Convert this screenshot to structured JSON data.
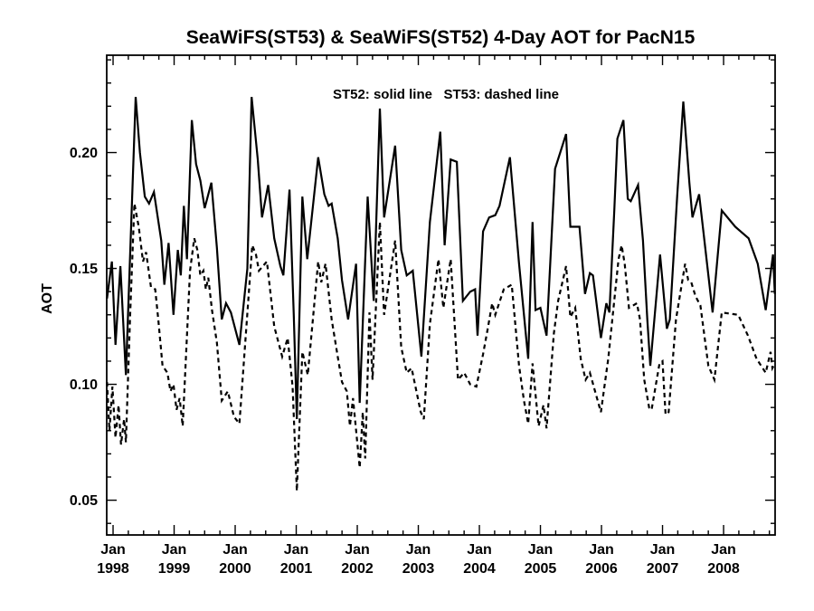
{
  "page": {
    "background_color": "#ffffff",
    "foreground_color": "#000000"
  },
  "chart_data": {
    "type": "line",
    "title": "SeaWiFS(ST53) & SeaWiFS(ST52) 4-Day AOT for PacN15",
    "annotation": "ST52: solid line   ST53: dashed line",
    "xlabel": "",
    "ylabel": "AOT",
    "grid": false,
    "frame": true,
    "legend_position": "top-center-inside",
    "line_color": "#000000",
    "x_axis": {
      "unit": "decimal_year",
      "range": [
        1997.896,
        2008.844
      ],
      "major_ticks": [
        1998,
        1999,
        2000,
        2001,
        2002,
        2003,
        2004,
        2005,
        2006,
        2007,
        2008
      ],
      "tick_months": [
        "Jan",
        "Jan",
        "Jan",
        "Jan",
        "Jan",
        "Jan",
        "Jan",
        "Jan",
        "Jan",
        "Jan",
        "Jan"
      ],
      "tick_years": [
        "1998",
        "1999",
        "2000",
        "2001",
        "2002",
        "2003",
        "2004",
        "2005",
        "2006",
        "2007",
        "2008"
      ],
      "minor_tick_step": 0.25
    },
    "y_axis": {
      "range": [
        0.035,
        0.242
      ],
      "major_ticks": [
        0.05,
        0.1,
        0.15,
        0.2
      ],
      "major_tick_labels": [
        "0.05",
        "0.10",
        "0.15",
        "0.20"
      ],
      "minor_tick_step": 0.01
    },
    "series": [
      {
        "name": "ST52",
        "style": "solid",
        "points": [
          [
            1997.9,
            0.137
          ],
          [
            1997.98,
            0.153
          ],
          [
            1998.04,
            0.117
          ],
          [
            1998.12,
            0.151
          ],
          [
            1998.21,
            0.104
          ],
          [
            1998.37,
            0.224
          ],
          [
            1998.44,
            0.2
          ],
          [
            1998.52,
            0.181
          ],
          [
            1998.59,
            0.178
          ],
          [
            1998.67,
            0.183
          ],
          [
            1998.79,
            0.162
          ],
          [
            1998.84,
            0.143
          ],
          [
            1998.91,
            0.161
          ],
          [
            1998.99,
            0.13
          ],
          [
            1999.06,
            0.158
          ],
          [
            1999.11,
            0.147
          ],
          [
            1999.16,
            0.177
          ],
          [
            1999.21,
            0.154
          ],
          [
            1999.29,
            0.214
          ],
          [
            1999.36,
            0.195
          ],
          [
            1999.43,
            0.188
          ],
          [
            1999.5,
            0.176
          ],
          [
            1999.61,
            0.187
          ],
          [
            1999.7,
            0.159
          ],
          [
            1999.78,
            0.128
          ],
          [
            1999.85,
            0.135
          ],
          [
            1999.93,
            0.131
          ],
          [
            2000.07,
            0.117
          ],
          [
            2000.2,
            0.15
          ],
          [
            2000.27,
            0.224
          ],
          [
            2000.37,
            0.197
          ],
          [
            2000.44,
            0.172
          ],
          [
            2000.54,
            0.186
          ],
          [
            2000.64,
            0.163
          ],
          [
            2000.74,
            0.151
          ],
          [
            2000.79,
            0.147
          ],
          [
            2000.89,
            0.184
          ],
          [
            2000.96,
            0.13
          ],
          [
            2001.01,
            0.085
          ],
          [
            2001.1,
            0.181
          ],
          [
            2001.18,
            0.154
          ],
          [
            2001.36,
            0.198
          ],
          [
            2001.46,
            0.182
          ],
          [
            2001.53,
            0.177
          ],
          [
            2001.58,
            0.178
          ],
          [
            2001.68,
            0.163
          ],
          [
            2001.75,
            0.145
          ],
          [
            2001.85,
            0.128
          ],
          [
            2001.98,
            0.152
          ],
          [
            2002.04,
            0.092
          ],
          [
            2002.17,
            0.181
          ],
          [
            2002.27,
            0.136
          ],
          [
            2002.37,
            0.219
          ],
          [
            2002.44,
            0.172
          ],
          [
            2002.62,
            0.203
          ],
          [
            2002.72,
            0.158
          ],
          [
            2002.81,
            0.147
          ],
          [
            2002.91,
            0.149
          ],
          [
            2003.05,
            0.112
          ],
          [
            2003.19,
            0.17
          ],
          [
            2003.36,
            0.209
          ],
          [
            2003.43,
            0.16
          ],
          [
            2003.53,
            0.197
          ],
          [
            2003.63,
            0.196
          ],
          [
            2003.73,
            0.136
          ],
          [
            2003.85,
            0.14
          ],
          [
            2003.93,
            0.141
          ],
          [
            2003.97,
            0.121
          ],
          [
            2004.06,
            0.166
          ],
          [
            2004.16,
            0.172
          ],
          [
            2004.26,
            0.173
          ],
          [
            2004.33,
            0.177
          ],
          [
            2004.5,
            0.198
          ],
          [
            2004.65,
            0.152
          ],
          [
            2004.8,
            0.111
          ],
          [
            2004.87,
            0.17
          ],
          [
            2004.92,
            0.132
          ],
          [
            2005.0,
            0.133
          ],
          [
            2005.1,
            0.121
          ],
          [
            2005.24,
            0.193
          ],
          [
            2005.42,
            0.208
          ],
          [
            2005.49,
            0.168
          ],
          [
            2005.64,
            0.168
          ],
          [
            2005.73,
            0.139
          ],
          [
            2005.81,
            0.148
          ],
          [
            2005.86,
            0.147
          ],
          [
            2005.99,
            0.12
          ],
          [
            2006.08,
            0.135
          ],
          [
            2006.13,
            0.131
          ],
          [
            2006.21,
            0.175
          ],
          [
            2006.26,
            0.206
          ],
          [
            2006.36,
            0.214
          ],
          [
            2006.43,
            0.18
          ],
          [
            2006.48,
            0.179
          ],
          [
            2006.6,
            0.186
          ],
          [
            2006.68,
            0.162
          ],
          [
            2006.75,
            0.128
          ],
          [
            2006.8,
            0.108
          ],
          [
            2006.96,
            0.156
          ],
          [
            2007.07,
            0.124
          ],
          [
            2007.12,
            0.128
          ],
          [
            2007.24,
            0.181
          ],
          [
            2007.34,
            0.222
          ],
          [
            2007.44,
            0.187
          ],
          [
            2007.49,
            0.172
          ],
          [
            2007.6,
            0.182
          ],
          [
            2007.82,
            0.131
          ],
          [
            2007.97,
            0.175
          ],
          [
            2008.19,
            0.168
          ],
          [
            2008.41,
            0.163
          ],
          [
            2008.56,
            0.152
          ],
          [
            2008.69,
            0.132
          ],
          [
            2008.81,
            0.156
          ],
          [
            2008.84,
            0.139
          ]
        ]
      },
      {
        "name": "ST53",
        "style": "dashed",
        "points": [
          [
            1997.9,
            0.101
          ],
          [
            1997.94,
            0.08
          ],
          [
            1997.99,
            0.099
          ],
          [
            1998.04,
            0.077
          ],
          [
            1998.09,
            0.091
          ],
          [
            1998.13,
            0.074
          ],
          [
            1998.18,
            0.085
          ],
          [
            1998.21,
            0.075
          ],
          [
            1998.28,
            0.13
          ],
          [
            1998.35,
            0.178
          ],
          [
            1998.42,
            0.168
          ],
          [
            1998.49,
            0.153
          ],
          [
            1998.54,
            0.157
          ],
          [
            1998.62,
            0.142
          ],
          [
            1998.69,
            0.141
          ],
          [
            1998.74,
            0.128
          ],
          [
            1998.81,
            0.108
          ],
          [
            1998.89,
            0.105
          ],
          [
            1998.94,
            0.097
          ],
          [
            1998.99,
            0.1
          ],
          [
            1999.04,
            0.089
          ],
          [
            1999.09,
            0.094
          ],
          [
            1999.14,
            0.082
          ],
          [
            1999.26,
            0.149
          ],
          [
            1999.33,
            0.163
          ],
          [
            1999.38,
            0.158
          ],
          [
            1999.43,
            0.147
          ],
          [
            1999.48,
            0.149
          ],
          [
            1999.52,
            0.141
          ],
          [
            1999.56,
            0.146
          ],
          [
            1999.62,
            0.132
          ],
          [
            1999.7,
            0.118
          ],
          [
            1999.78,
            0.093
          ],
          [
            1999.88,
            0.097
          ],
          [
            1999.98,
            0.086
          ],
          [
            2000.07,
            0.083
          ],
          [
            2000.28,
            0.16
          ],
          [
            2000.34,
            0.156
          ],
          [
            2000.39,
            0.149
          ],
          [
            2000.52,
            0.153
          ],
          [
            2000.64,
            0.125
          ],
          [
            2000.77,
            0.112
          ],
          [
            2000.86,
            0.12
          ],
          [
            2000.94,
            0.099
          ],
          [
            2001.01,
            0.054
          ],
          [
            2001.1,
            0.114
          ],
          [
            2001.19,
            0.104
          ],
          [
            2001.36,
            0.153
          ],
          [
            2001.41,
            0.144
          ],
          [
            2001.48,
            0.152
          ],
          [
            2001.58,
            0.128
          ],
          [
            2001.68,
            0.112
          ],
          [
            2001.75,
            0.101
          ],
          [
            2001.83,
            0.097
          ],
          [
            2001.88,
            0.082
          ],
          [
            2001.93,
            0.094
          ],
          [
            2002.04,
            0.064
          ],
          [
            2002.09,
            0.088
          ],
          [
            2002.13,
            0.068
          ],
          [
            2002.2,
            0.131
          ],
          [
            2002.25,
            0.102
          ],
          [
            2002.37,
            0.17
          ],
          [
            2002.44,
            0.13
          ],
          [
            2002.62,
            0.162
          ],
          [
            2002.72,
            0.116
          ],
          [
            2002.81,
            0.105
          ],
          [
            2002.89,
            0.107
          ],
          [
            2003.04,
            0.088
          ],
          [
            2003.09,
            0.085
          ],
          [
            2003.19,
            0.126
          ],
          [
            2003.33,
            0.154
          ],
          [
            2003.41,
            0.133
          ],
          [
            2003.53,
            0.154
          ],
          [
            2003.65,
            0.102
          ],
          [
            2003.75,
            0.105
          ],
          [
            2003.85,
            0.1
          ],
          [
            2003.95,
            0.099
          ],
          [
            2004.06,
            0.113
          ],
          [
            2004.13,
            0.123
          ],
          [
            2004.21,
            0.135
          ],
          [
            2004.26,
            0.13
          ],
          [
            2004.4,
            0.141
          ],
          [
            2004.53,
            0.143
          ],
          [
            2004.65,
            0.108
          ],
          [
            2004.73,
            0.093
          ],
          [
            2004.8,
            0.083
          ],
          [
            2004.87,
            0.109
          ],
          [
            2004.97,
            0.082
          ],
          [
            2005.05,
            0.091
          ],
          [
            2005.1,
            0.081
          ],
          [
            2005.22,
            0.122
          ],
          [
            2005.29,
            0.136
          ],
          [
            2005.42,
            0.151
          ],
          [
            2005.49,
            0.129
          ],
          [
            2005.57,
            0.133
          ],
          [
            2005.66,
            0.111
          ],
          [
            2005.74,
            0.102
          ],
          [
            2005.81,
            0.105
          ],
          [
            2005.99,
            0.088
          ],
          [
            2006.11,
            0.111
          ],
          [
            2006.28,
            0.154
          ],
          [
            2006.33,
            0.16
          ],
          [
            2006.38,
            0.152
          ],
          [
            2006.45,
            0.133
          ],
          [
            2006.58,
            0.135
          ],
          [
            2006.63,
            0.128
          ],
          [
            2006.7,
            0.102
          ],
          [
            2006.78,
            0.09
          ],
          [
            2006.82,
            0.089
          ],
          [
            2006.95,
            0.109
          ],
          [
            2007.0,
            0.11
          ],
          [
            2007.05,
            0.087
          ],
          [
            2007.1,
            0.088
          ],
          [
            2007.22,
            0.128
          ],
          [
            2007.37,
            0.152
          ],
          [
            2007.42,
            0.145
          ],
          [
            2007.47,
            0.144
          ],
          [
            2007.54,
            0.138
          ],
          [
            2007.62,
            0.134
          ],
          [
            2007.75,
            0.108
          ],
          [
            2007.85,
            0.102
          ],
          [
            2007.97,
            0.131
          ],
          [
            2008.24,
            0.13
          ],
          [
            2008.4,
            0.121
          ],
          [
            2008.54,
            0.111
          ],
          [
            2008.69,
            0.105
          ],
          [
            2008.77,
            0.114
          ],
          [
            2008.8,
            0.107
          ],
          [
            2008.84,
            0.109
          ]
        ]
      }
    ]
  }
}
